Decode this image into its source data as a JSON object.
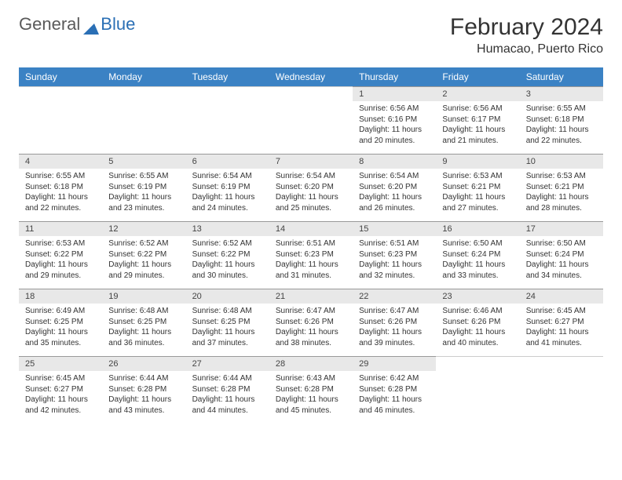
{
  "logo": {
    "general": "General",
    "blue": "Blue"
  },
  "title": "February 2024",
  "location": "Humacao, Puerto Rico",
  "colors": {
    "header_bg": "#3b82c4",
    "header_text": "#ffffff",
    "daynum_bg": "#e8e8e8",
    "text": "#333333"
  },
  "weekdays": [
    "Sunday",
    "Monday",
    "Tuesday",
    "Wednesday",
    "Thursday",
    "Friday",
    "Saturday"
  ],
  "weeks": [
    [
      null,
      null,
      null,
      null,
      {
        "n": "1",
        "sr": "6:56 AM",
        "ss": "6:16 PM",
        "dl": "11 hours and 20 minutes."
      },
      {
        "n": "2",
        "sr": "6:56 AM",
        "ss": "6:17 PM",
        "dl": "11 hours and 21 minutes."
      },
      {
        "n": "3",
        "sr": "6:55 AM",
        "ss": "6:18 PM",
        "dl": "11 hours and 22 minutes."
      }
    ],
    [
      {
        "n": "4",
        "sr": "6:55 AM",
        "ss": "6:18 PM",
        "dl": "11 hours and 22 minutes."
      },
      {
        "n": "5",
        "sr": "6:55 AM",
        "ss": "6:19 PM",
        "dl": "11 hours and 23 minutes."
      },
      {
        "n": "6",
        "sr": "6:54 AM",
        "ss": "6:19 PM",
        "dl": "11 hours and 24 minutes."
      },
      {
        "n": "7",
        "sr": "6:54 AM",
        "ss": "6:20 PM",
        "dl": "11 hours and 25 minutes."
      },
      {
        "n": "8",
        "sr": "6:54 AM",
        "ss": "6:20 PM",
        "dl": "11 hours and 26 minutes."
      },
      {
        "n": "9",
        "sr": "6:53 AM",
        "ss": "6:21 PM",
        "dl": "11 hours and 27 minutes."
      },
      {
        "n": "10",
        "sr": "6:53 AM",
        "ss": "6:21 PM",
        "dl": "11 hours and 28 minutes."
      }
    ],
    [
      {
        "n": "11",
        "sr": "6:53 AM",
        "ss": "6:22 PM",
        "dl": "11 hours and 29 minutes."
      },
      {
        "n": "12",
        "sr": "6:52 AM",
        "ss": "6:22 PM",
        "dl": "11 hours and 29 minutes."
      },
      {
        "n": "13",
        "sr": "6:52 AM",
        "ss": "6:22 PM",
        "dl": "11 hours and 30 minutes."
      },
      {
        "n": "14",
        "sr": "6:51 AM",
        "ss": "6:23 PM",
        "dl": "11 hours and 31 minutes."
      },
      {
        "n": "15",
        "sr": "6:51 AM",
        "ss": "6:23 PM",
        "dl": "11 hours and 32 minutes."
      },
      {
        "n": "16",
        "sr": "6:50 AM",
        "ss": "6:24 PM",
        "dl": "11 hours and 33 minutes."
      },
      {
        "n": "17",
        "sr": "6:50 AM",
        "ss": "6:24 PM",
        "dl": "11 hours and 34 minutes."
      }
    ],
    [
      {
        "n": "18",
        "sr": "6:49 AM",
        "ss": "6:25 PM",
        "dl": "11 hours and 35 minutes."
      },
      {
        "n": "19",
        "sr": "6:48 AM",
        "ss": "6:25 PM",
        "dl": "11 hours and 36 minutes."
      },
      {
        "n": "20",
        "sr": "6:48 AM",
        "ss": "6:25 PM",
        "dl": "11 hours and 37 minutes."
      },
      {
        "n": "21",
        "sr": "6:47 AM",
        "ss": "6:26 PM",
        "dl": "11 hours and 38 minutes."
      },
      {
        "n": "22",
        "sr": "6:47 AM",
        "ss": "6:26 PM",
        "dl": "11 hours and 39 minutes."
      },
      {
        "n": "23",
        "sr": "6:46 AM",
        "ss": "6:26 PM",
        "dl": "11 hours and 40 minutes."
      },
      {
        "n": "24",
        "sr": "6:45 AM",
        "ss": "6:27 PM",
        "dl": "11 hours and 41 minutes."
      }
    ],
    [
      {
        "n": "25",
        "sr": "6:45 AM",
        "ss": "6:27 PM",
        "dl": "11 hours and 42 minutes."
      },
      {
        "n": "26",
        "sr": "6:44 AM",
        "ss": "6:28 PM",
        "dl": "11 hours and 43 minutes."
      },
      {
        "n": "27",
        "sr": "6:44 AM",
        "ss": "6:28 PM",
        "dl": "11 hours and 44 minutes."
      },
      {
        "n": "28",
        "sr": "6:43 AM",
        "ss": "6:28 PM",
        "dl": "11 hours and 45 minutes."
      },
      {
        "n": "29",
        "sr": "6:42 AM",
        "ss": "6:28 PM",
        "dl": "11 hours and 46 minutes."
      },
      null,
      null
    ]
  ],
  "labels": {
    "sunrise": "Sunrise:",
    "sunset": "Sunset:",
    "daylight": "Daylight:"
  }
}
